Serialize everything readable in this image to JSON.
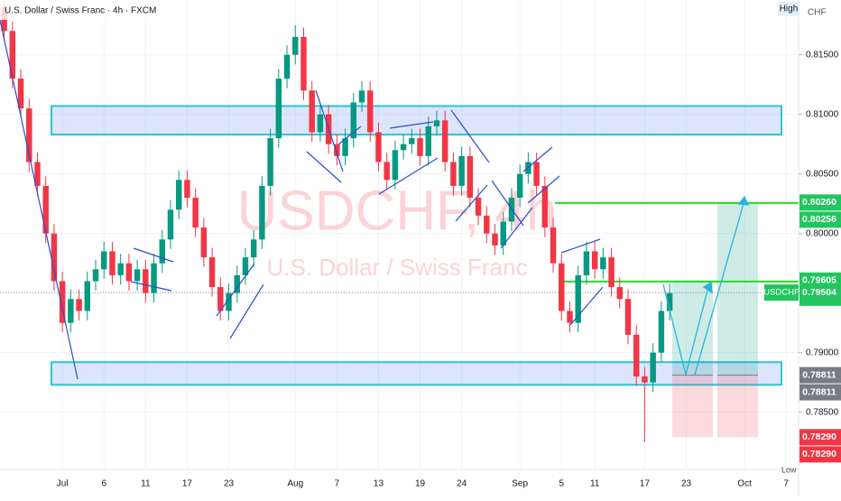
{
  "chart_data": {
    "type": "candlestick",
    "title": "U.S. Dollar / Swiss Franc · 4h · FXCM",
    "watermark": "USDCHF, 4h",
    "watermark_subtitle": "U.S. Dollar / Swiss Franc",
    "axis_header": "High",
    "currency": "CHF",
    "axis_footer": "Low",
    "symbol": "USDCHF",
    "categories": [
      null,
      null,
      null,
      null,
      null,
      null,
      null,
      "Jul",
      null,
      null,
      null,
      null,
      "6",
      null,
      null,
      null,
      null,
      "11",
      null,
      null,
      null,
      null,
      "17",
      null,
      null,
      null,
      null,
      "23",
      null,
      null,
      null,
      null,
      null,
      null,
      null,
      "Aug",
      null,
      null,
      null,
      null,
      "7",
      null,
      null,
      null,
      null,
      "13",
      null,
      null,
      null,
      null,
      "19",
      null,
      null,
      null,
      null,
      "24",
      null,
      null,
      null,
      null,
      null,
      null,
      "Sep",
      null,
      null,
      null,
      null,
      "5",
      null,
      null,
      null,
      "11",
      null,
      null,
      null,
      null,
      null,
      "17",
      null,
      null,
      null,
      null,
      "23",
      null,
      null,
      null,
      null,
      null,
      null,
      "Oct",
      null,
      null,
      null,
      null,
      "7",
      null
    ],
    "open": [
      0.819,
      0.817,
      0.813,
      0.8105,
      0.806,
      0.804,
      0.8,
      0.796,
      0.7925,
      0.7945,
      0.7935,
      0.796,
      0.797,
      0.7985,
      0.7965,
      0.7975,
      0.796,
      0.797,
      0.795,
      0.7975,
      0.7995,
      0.802,
      0.8045,
      0.803,
      0.8005,
      0.798,
      0.7955,
      0.7935,
      0.795,
      0.7965,
      0.798,
      0.7995,
      0.804,
      0.808,
      0.813,
      0.815,
      0.8165,
      0.812,
      0.8085,
      0.81,
      0.8075,
      0.8065,
      0.808,
      0.811,
      0.812,
      0.8085,
      0.806,
      0.8045,
      0.807,
      0.8075,
      0.808,
      0.8065,
      0.809,
      0.8095,
      0.806,
      0.804,
      0.8065,
      0.803,
      0.8015,
      0.8,
      0.799,
      0.801,
      0.803,
      0.805,
      0.806,
      0.804,
      0.8005,
      0.7975,
      0.7935,
      0.7925,
      0.7965,
      0.7985,
      0.797,
      0.798,
      0.7955,
      0.7945,
      0.7915,
      0.788,
      0.7875,
      0.79,
      0.7935,
      null,
      null,
      null,
      null,
      null,
      null,
      null,
      null,
      null,
      null,
      null,
      null,
      null,
      null,
      null
    ],
    "high": [
      0.8198,
      0.8178,
      0.8138,
      0.8113,
      0.8068,
      0.8048,
      0.8008,
      0.7968,
      0.7953,
      0.7953,
      0.7968,
      0.7978,
      0.7993,
      0.7993,
      0.7983,
      0.7983,
      0.7978,
      0.7978,
      0.7983,
      0.8003,
      0.8028,
      0.8053,
      0.8053,
      0.8038,
      0.8013,
      0.7988,
      0.7963,
      0.7958,
      0.7973,
      0.7988,
      0.8003,
      0.8048,
      0.8088,
      0.8138,
      0.8158,
      0.8175,
      0.8173,
      0.8128,
      0.8108,
      0.8108,
      0.8083,
      0.8088,
      0.8118,
      0.8128,
      0.8128,
      0.8093,
      0.8068,
      0.8078,
      0.8083,
      0.8088,
      0.8088,
      0.8098,
      0.8103,
      0.8103,
      0.8068,
      0.8073,
      0.8073,
      0.8038,
      0.8023,
      0.8008,
      0.8018,
      0.8038,
      0.8058,
      0.8068,
      0.8068,
      0.8048,
      0.8013,
      0.7983,
      0.7943,
      0.7973,
      0.7993,
      0.7993,
      0.7988,
      0.7988,
      0.7963,
      0.7953,
      0.7923,
      0.7888,
      0.7908,
      0.7943,
      0.7958,
      null,
      null,
      null,
      null,
      null,
      null,
      null,
      null,
      null,
      null,
      null,
      null,
      null,
      null,
      null
    ],
    "low": [
      0.8162,
      0.8122,
      0.8097,
      0.8052,
      0.8032,
      0.7992,
      0.7952,
      0.7917,
      0.7917,
      0.7927,
      0.7927,
      0.7952,
      0.7962,
      0.7957,
      0.7957,
      0.7952,
      0.7952,
      0.7942,
      0.7942,
      0.7967,
      0.7987,
      0.8012,
      0.8022,
      0.7997,
      0.7972,
      0.7947,
      0.7927,
      0.7927,
      0.7942,
      0.7957,
      0.7972,
      0.7987,
      0.8032,
      0.8072,
      0.8122,
      0.8142,
      0.8112,
      0.8077,
      0.8077,
      0.8067,
      0.8057,
      0.8057,
      0.8072,
      0.8102,
      0.8077,
      0.8052,
      0.8037,
      0.8037,
      0.8062,
      0.8067,
      0.8057,
      0.8057,
      0.8082,
      0.8052,
      0.8032,
      0.8032,
      0.8022,
      0.8007,
      0.7992,
      0.7982,
      0.7982,
      0.8002,
      0.8022,
      0.8042,
      0.8032,
      0.7997,
      0.7967,
      0.7927,
      0.7917,
      0.7917,
      0.7957,
      0.7962,
      0.7962,
      0.7947,
      0.7937,
      0.7907,
      0.7872,
      0.7825,
      0.7867,
      0.7892,
      0.7927,
      null,
      null,
      null,
      null,
      null,
      null,
      null,
      null,
      null,
      null,
      null,
      null,
      null,
      null,
      null
    ],
    "close": [
      0.817,
      0.813,
      0.8105,
      0.806,
      0.804,
      0.8,
      0.796,
      0.7925,
      0.7945,
      0.7935,
      0.796,
      0.797,
      0.7985,
      0.7965,
      0.7975,
      0.796,
      0.797,
      0.795,
      0.7975,
      0.7995,
      0.802,
      0.8045,
      0.803,
      0.8005,
      0.798,
      0.7955,
      0.7935,
      0.795,
      0.7965,
      0.798,
      0.7995,
      0.804,
      0.808,
      0.813,
      0.815,
      0.8165,
      0.812,
      0.8085,
      0.81,
      0.8075,
      0.8065,
      0.808,
      0.811,
      0.812,
      0.8085,
      0.806,
      0.8045,
      0.807,
      0.8075,
      0.808,
      0.8065,
      0.809,
      0.8095,
      0.806,
      0.804,
      0.8065,
      0.803,
      0.8015,
      0.8,
      0.799,
      0.801,
      0.803,
      0.805,
      0.806,
      0.804,
      0.8005,
      0.7975,
      0.7935,
      0.7925,
      0.7965,
      0.7985,
      0.797,
      0.798,
      0.7955,
      0.7945,
      0.7915,
      0.788,
      0.7875,
      0.79,
      0.7935,
      0.795,
      null,
      null,
      null,
      null,
      null,
      null,
      null,
      null,
      null,
      null,
      null,
      null,
      null,
      null,
      null
    ],
    "up_color": "#089981",
    "down_color": "#f23645",
    "ylim": [
      0.7802,
      0.8196
    ],
    "yticks": [
      {
        "value": 0.785,
        "label": "0.78500"
      },
      {
        "value": 0.79,
        "label": "0.79000"
      },
      {
        "value": 0.795,
        "label": "0.79500"
      },
      {
        "value": 0.8,
        "label": "0.80000"
      },
      {
        "value": 0.805,
        "label": "0.80500"
      },
      {
        "value": 0.81,
        "label": "0.81000"
      },
      {
        "value": 0.815,
        "label": "0.81500"
      }
    ],
    "grid": true,
    "zones": [
      {
        "top": 0.8107,
        "bottom": 0.8083
      },
      {
        "top": 0.7892,
        "bottom": 0.7873
      }
    ],
    "levels": [
      {
        "value": 0.80256,
        "color": "#22dd22"
      },
      {
        "value": 0.79597,
        "color": "#22dd22"
      }
    ],
    "positions": [
      {
        "entry": 0.78811,
        "target": 0.79605,
        "stop": 0.7829
      },
      {
        "entry": 0.78811,
        "target": 0.8026,
        "stop": 0.7829
      }
    ],
    "last_price": {
      "value": 0.79504,
      "label": "0.79504"
    },
    "price_labels": [
      {
        "value": 0.8026,
        "label": "0.80260",
        "color": "#22c55e"
      },
      {
        "value": 0.80256,
        "label": "0.80256",
        "color": "#22c55e"
      },
      {
        "value": 0.79605,
        "label": "0.79605",
        "color": "#22c55e"
      },
      {
        "value": 0.79597,
        "label": "0.79597",
        "color": "#22c55e"
      },
      {
        "value": 0.78811,
        "label": "0.78811",
        "color": "#787b86"
      },
      {
        "value": 0.78811,
        "label": "0.78811",
        "color": "#787b86"
      },
      {
        "value": 0.7829,
        "label": "0.78290",
        "color": "#f23645"
      },
      {
        "value": 0.7829,
        "label": "0.78290",
        "color": "#f23645"
      }
    ]
  }
}
